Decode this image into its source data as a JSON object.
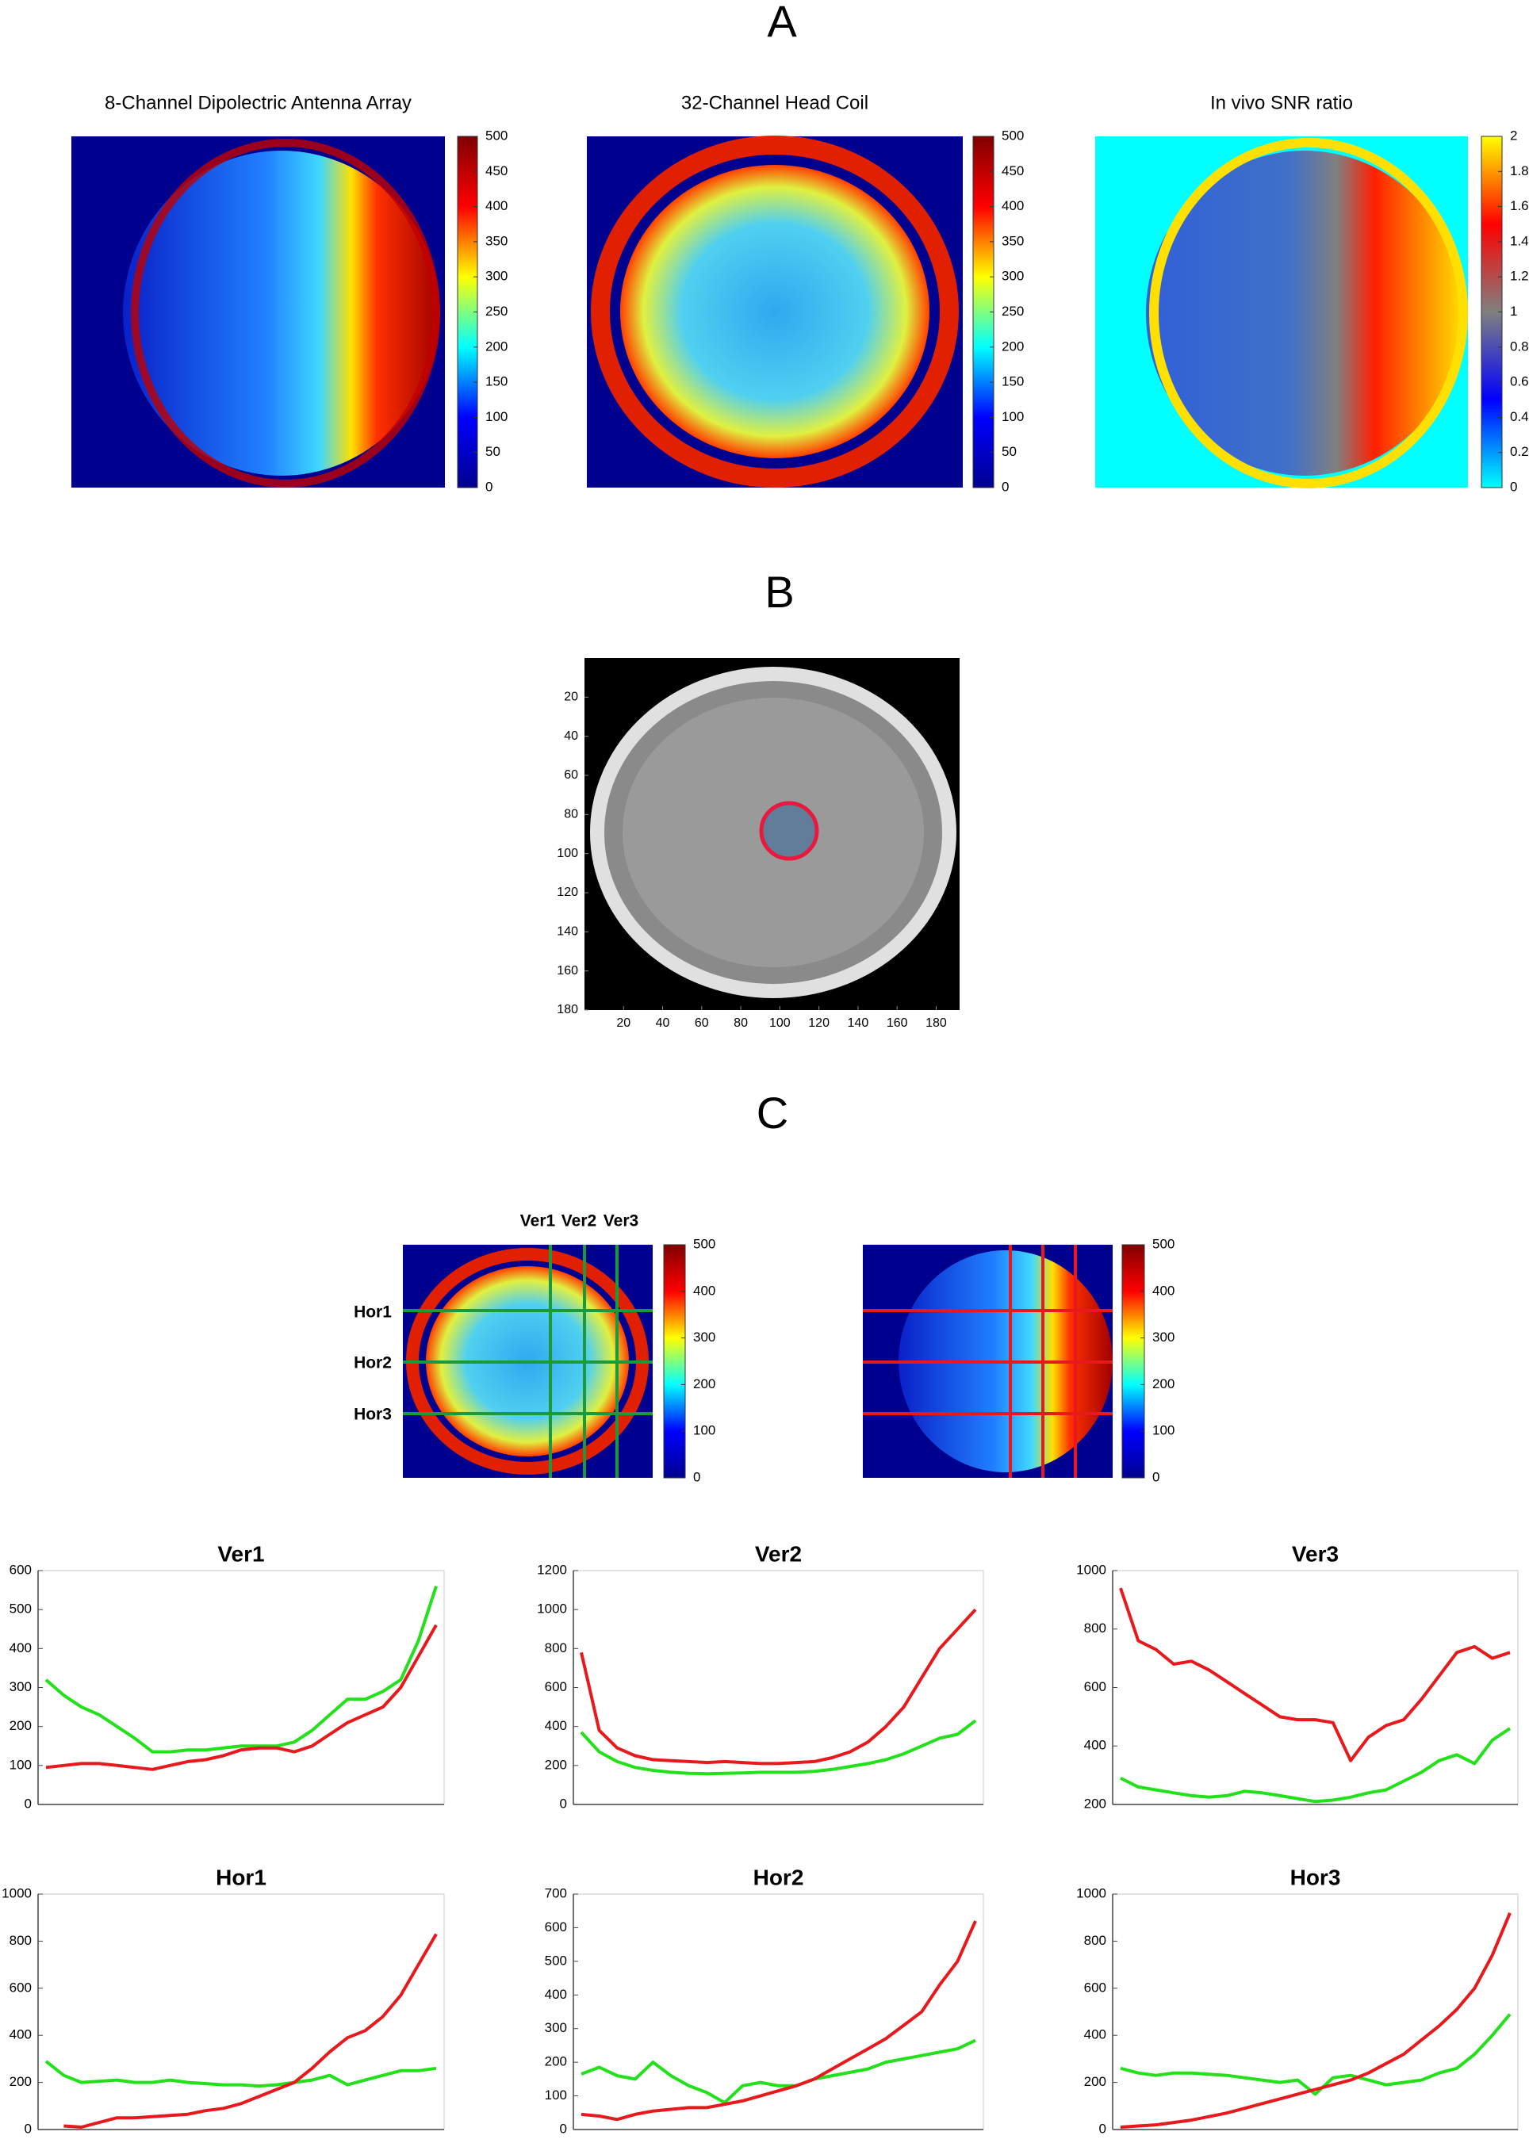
{
  "panel_labels": [
    "A",
    "B",
    "C"
  ],
  "chart_data": [
    {
      "type": "heatmap",
      "title": "8-Channel Dipolectric Antenna Array",
      "zlim": [
        0,
        500
      ],
      "zticks": [
        0,
        50,
        100,
        150,
        200,
        250,
        300,
        350,
        400,
        450,
        500
      ],
      "colormap": [
        "#00008f",
        "#0000ff",
        "#00ffff",
        "#ffff00",
        "#ff0000",
        "#800000"
      ]
    },
    {
      "type": "heatmap",
      "title": "32-Channel Head Coil",
      "zlim": [
        0,
        500
      ],
      "zticks": [
        0,
        50,
        100,
        150,
        200,
        250,
        300,
        350,
        400,
        450,
        500
      ],
      "colormap": [
        "#00008f",
        "#0000ff",
        "#00ffff",
        "#ffff00",
        "#ff0000",
        "#800000"
      ]
    },
    {
      "type": "heatmap",
      "title": "In vivo SNR ratio",
      "zlim": [
        0,
        2
      ],
      "zticks": [
        0,
        0.2,
        0.4,
        0.6,
        0.8,
        1,
        1.2,
        1.4,
        1.6,
        1.8,
        2
      ],
      "colormap": [
        "#00ffff",
        "#0000ff",
        "#808080",
        "#ff0000",
        "#ffff00"
      ]
    },
    {
      "type": "image",
      "xlim": [
        0,
        192
      ],
      "ylim": [
        0,
        180
      ],
      "xticks": [
        20,
        40,
        60,
        80,
        100,
        120,
        140,
        160,
        180
      ],
      "yticks": [
        20,
        40,
        60,
        80,
        100,
        120,
        140,
        160,
        180
      ]
    },
    {
      "type": "heatmap",
      "zlim": [
        0,
        500
      ],
      "zticks": [
        0,
        100,
        200,
        300,
        400,
        500
      ],
      "colormap": [
        "#00008f",
        "#0000ff",
        "#00ffff",
        "#ffff00",
        "#ff0000",
        "#800000"
      ],
      "line_labels": [
        "Ver1",
        "Ver2",
        "Ver3",
        "Hor1",
        "Hor2",
        "Hor3"
      ]
    },
    {
      "type": "heatmap",
      "zlim": [
        0,
        500
      ],
      "zticks": [
        0,
        100,
        200,
        300,
        400,
        500
      ],
      "colormap": [
        "#00008f",
        "#0000ff",
        "#00ffff",
        "#ffff00",
        "#ff0000",
        "#800000"
      ]
    },
    {
      "type": "line",
      "title": "Ver1",
      "ylim": [
        0,
        600
      ],
      "yticks": [
        0,
        100,
        200,
        300,
        400,
        500,
        600
      ],
      "series": [
        {
          "color": "#22e01a",
          "values": [
            320,
            280,
            250,
            230,
            200,
            170,
            135,
            135,
            140,
            140,
            145,
            150,
            150,
            150,
            160,
            190,
            230,
            270,
            270,
            290,
            320,
            420,
            560
          ]
        },
        {
          "color": "#e8191c",
          "values": [
            95,
            100,
            105,
            105,
            100,
            95,
            90,
            100,
            110,
            115,
            125,
            140,
            145,
            145,
            135,
            150,
            180,
            210,
            230,
            250,
            300,
            380,
            460
          ]
        }
      ]
    },
    {
      "type": "line",
      "title": "Ver2",
      "ylim": [
        0,
        1200
      ],
      "yticks": [
        0,
        200,
        400,
        600,
        800,
        1000,
        1200
      ],
      "series": [
        {
          "color": "#e8191c",
          "values": [
            780,
            380,
            290,
            250,
            230,
            225,
            220,
            215,
            220,
            215,
            210,
            210,
            215,
            220,
            240,
            270,
            320,
            400,
            500,
            650,
            800,
            900,
            1000
          ]
        },
        {
          "color": "#22e01a",
          "values": [
            370,
            270,
            220,
            190,
            175,
            165,
            160,
            158,
            160,
            162,
            165,
            165,
            165,
            170,
            180,
            195,
            210,
            230,
            260,
            300,
            340,
            360,
            430
          ]
        }
      ]
    },
    {
      "type": "line",
      "title": "Ver3",
      "ylim": [
        200,
        1000
      ],
      "yticks": [
        200,
        400,
        600,
        800,
        1000
      ],
      "series": [
        {
          "color": "#e8191c",
          "values": [
            940,
            760,
            730,
            680,
            690,
            660,
            620,
            580,
            540,
            500,
            490,
            490,
            480,
            350,
            430,
            470,
            490,
            560,
            640,
            720,
            740,
            700,
            720
          ]
        },
        {
          "color": "#22e01a",
          "values": [
            290,
            260,
            250,
            240,
            230,
            225,
            230,
            245,
            240,
            230,
            220,
            210,
            215,
            225,
            240,
            250,
            280,
            310,
            350,
            370,
            340,
            420,
            460
          ]
        }
      ]
    },
    {
      "type": "line",
      "title": "Hor1",
      "ylim": [
        0,
        1000
      ],
      "yticks": [
        0,
        200,
        400,
        600,
        800,
        1000
      ],
      "series": [
        {
          "color": "#22e01a",
          "values": [
            290,
            230,
            200,
            205,
            210,
            200,
            200,
            210,
            200,
            195,
            190,
            190,
            185,
            190,
            200,
            210,
            230,
            190,
            210,
            230,
            250,
            250,
            260
          ]
        },
        {
          "color": "#e8191c",
          "values": [
            null,
            15,
            10,
            30,
            50,
            50,
            55,
            60,
            65,
            80,
            90,
            110,
            140,
            170,
            200,
            260,
            330,
            390,
            420,
            480,
            570,
            700,
            830
          ]
        }
      ]
    },
    {
      "type": "line",
      "title": "Hor2",
      "ylim": [
        0,
        700
      ],
      "yticks": [
        0,
        100,
        200,
        300,
        400,
        500,
        600,
        700
      ],
      "series": [
        {
          "color": "#22e01a",
          "values": [
            165,
            185,
            160,
            150,
            200,
            160,
            130,
            110,
            80,
            130,
            140,
            130,
            130,
            150,
            160,
            170,
            180,
            200,
            210,
            220,
            230,
            240,
            265
          ]
        },
        {
          "color": "#e8191c",
          "values": [
            45,
            40,
            30,
            45,
            55,
            60,
            65,
            65,
            75,
            85,
            100,
            115,
            130,
            150,
            180,
            210,
            240,
            270,
            310,
            350,
            430,
            500,
            620
          ]
        }
      ]
    },
    {
      "type": "line",
      "title": "Hor3",
      "ylim": [
        0,
        1000
      ],
      "yticks": [
        0,
        200,
        400,
        600,
        800,
        1000
      ],
      "series": [
        {
          "color": "#22e01a",
          "values": [
            260,
            240,
            230,
            240,
            240,
            235,
            230,
            220,
            210,
            200,
            210,
            150,
            220,
            230,
            210,
            190,
            200,
            210,
            240,
            260,
            320,
            400,
            490
          ]
        },
        {
          "color": "#e8191c",
          "values": [
            10,
            15,
            20,
            30,
            40,
            55,
            70,
            90,
            110,
            130,
            150,
            170,
            190,
            210,
            240,
            280,
            320,
            380,
            440,
            510,
            600,
            740,
            920
          ]
        }
      ]
    }
  ]
}
